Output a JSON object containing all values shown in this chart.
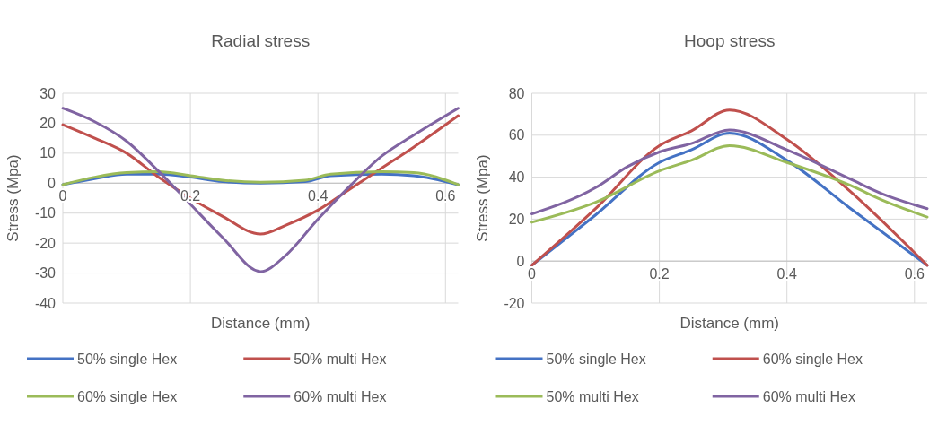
{
  "chart_data": [
    {
      "type": "line",
      "title": "Radial stress",
      "xlabel": "Distance (mm)",
      "ylabel": "Stress (Mpa)",
      "xlim": [
        0,
        0.62
      ],
      "xticks": [
        0,
        0.2,
        0.4,
        0.6
      ],
      "ylim": [
        -40,
        30
      ],
      "yticks": [
        -40,
        -30,
        -20,
        -10,
        0,
        10,
        20,
        30
      ],
      "grid": true,
      "legend": "bottom",
      "line_style": "solid",
      "series": [
        {
          "name": "50% single Hex",
          "color": "#4472c4",
          "x": [
            0,
            0.05,
            0.1,
            0.15,
            0.2,
            0.25,
            0.31,
            0.38,
            0.42,
            0.5,
            0.55,
            0.62
          ],
          "values": [
            -0.5,
            1.5,
            3,
            3,
            2,
            0.5,
            0,
            0.5,
            2.5,
            3,
            2.5,
            -0.5
          ]
        },
        {
          "name": "50% multi Hex",
          "color": "#c0504d",
          "x": [
            0,
            0.05,
            0.1,
            0.15,
            0.2,
            0.25,
            0.31,
            0.35,
            0.4,
            0.45,
            0.5,
            0.55,
            0.62
          ],
          "values": [
            19.5,
            15,
            10,
            2,
            -5,
            -11,
            -17,
            -14,
            -9,
            -2,
            5,
            12,
            22.5
          ]
        },
        {
          "name": "60% single Hex",
          "color": "#9bbb59",
          "x": [
            0,
            0.05,
            0.1,
            0.15,
            0.2,
            0.25,
            0.31,
            0.38,
            0.42,
            0.5,
            0.55,
            0.62
          ],
          "values": [
            -0.5,
            2,
            3.5,
            3.8,
            2.5,
            1,
            0.3,
            1,
            3,
            3.8,
            3.5,
            -0.5
          ]
        },
        {
          "name": "60% multi Hex",
          "color": "#8064a2",
          "x": [
            0,
            0.05,
            0.1,
            0.15,
            0.2,
            0.25,
            0.31,
            0.35,
            0.4,
            0.45,
            0.5,
            0.55,
            0.62
          ],
          "values": [
            25,
            20.5,
            14,
            4,
            -7,
            -18,
            -29.5,
            -24,
            -12,
            -1,
            9,
            16,
            25
          ]
        }
      ]
    },
    {
      "type": "line",
      "title": "Hoop stress",
      "xlabel": "Distance (mm)",
      "ylabel": "Stress (Mpa)",
      "xlim": [
        0,
        0.62
      ],
      "xticks": [
        0,
        0.2,
        0.4,
        0.6
      ],
      "ylim": [
        -20,
        80
      ],
      "yticks": [
        -20,
        0,
        20,
        40,
        60,
        80
      ],
      "grid": true,
      "legend": "bottom",
      "line_style": "solid",
      "series": [
        {
          "name": "50% single Hex",
          "color": "#4472c4",
          "x": [
            0,
            0.1,
            0.2,
            0.25,
            0.31,
            0.4,
            0.5,
            0.62
          ],
          "values": [
            -2,
            22,
            47,
            53,
            61,
            48,
            25,
            -2
          ]
        },
        {
          "name": "60% single Hex",
          "color": "#c0504d",
          "x": [
            0,
            0.1,
            0.2,
            0.25,
            0.31,
            0.4,
            0.5,
            0.62
          ],
          "values": [
            -2,
            25,
            55,
            62,
            72,
            58,
            33,
            -2
          ]
        },
        {
          "name": "50% multi Hex",
          "color": "#9bbb59",
          "x": [
            0,
            0.1,
            0.2,
            0.25,
            0.31,
            0.4,
            0.5,
            0.55,
            0.62
          ],
          "values": [
            18.5,
            28,
            43,
            48,
            55,
            47,
            36,
            29,
            21
          ]
        },
        {
          "name": "60% multi Hex",
          "color": "#8064a2",
          "x": [
            0,
            0.1,
            0.15,
            0.2,
            0.25,
            0.31,
            0.4,
            0.5,
            0.55,
            0.62
          ],
          "values": [
            22.5,
            35,
            45,
            52,
            56,
            62.5,
            53,
            39,
            32,
            25
          ]
        }
      ]
    }
  ]
}
